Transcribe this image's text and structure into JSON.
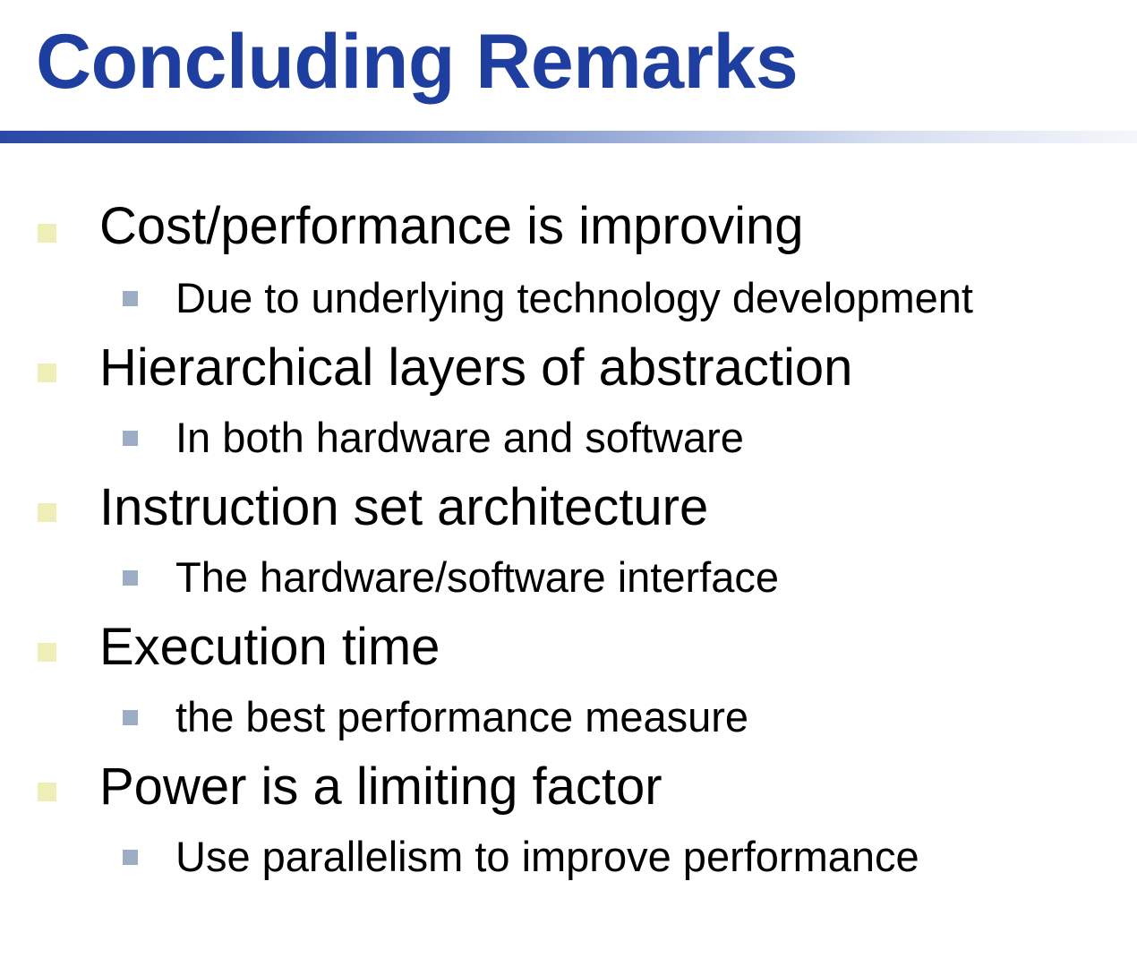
{
  "slide": {
    "title": "Concluding Remarks"
  },
  "colors": {
    "title": "#1f3fa0",
    "rule_start": "#2a4aa6",
    "rule_end": "#f4f6fb",
    "bullet_level1": "#efedb8",
    "bullet_level2": "#9eadc6",
    "text": "#000000"
  },
  "bullets": [
    {
      "text": "Cost/performance is improving",
      "sub": "Due to underlying technology development"
    },
    {
      "text": "Hierarchical layers of abstraction",
      "sub": "In both hardware and software"
    },
    {
      "text": "Instruction set architecture",
      "sub": "The hardware/software interface"
    },
    {
      "text": "Execution time",
      "sub": "the best performance measure"
    },
    {
      "text": "Power is a limiting factor",
      "sub": "Use parallelism to improve performance"
    }
  ]
}
